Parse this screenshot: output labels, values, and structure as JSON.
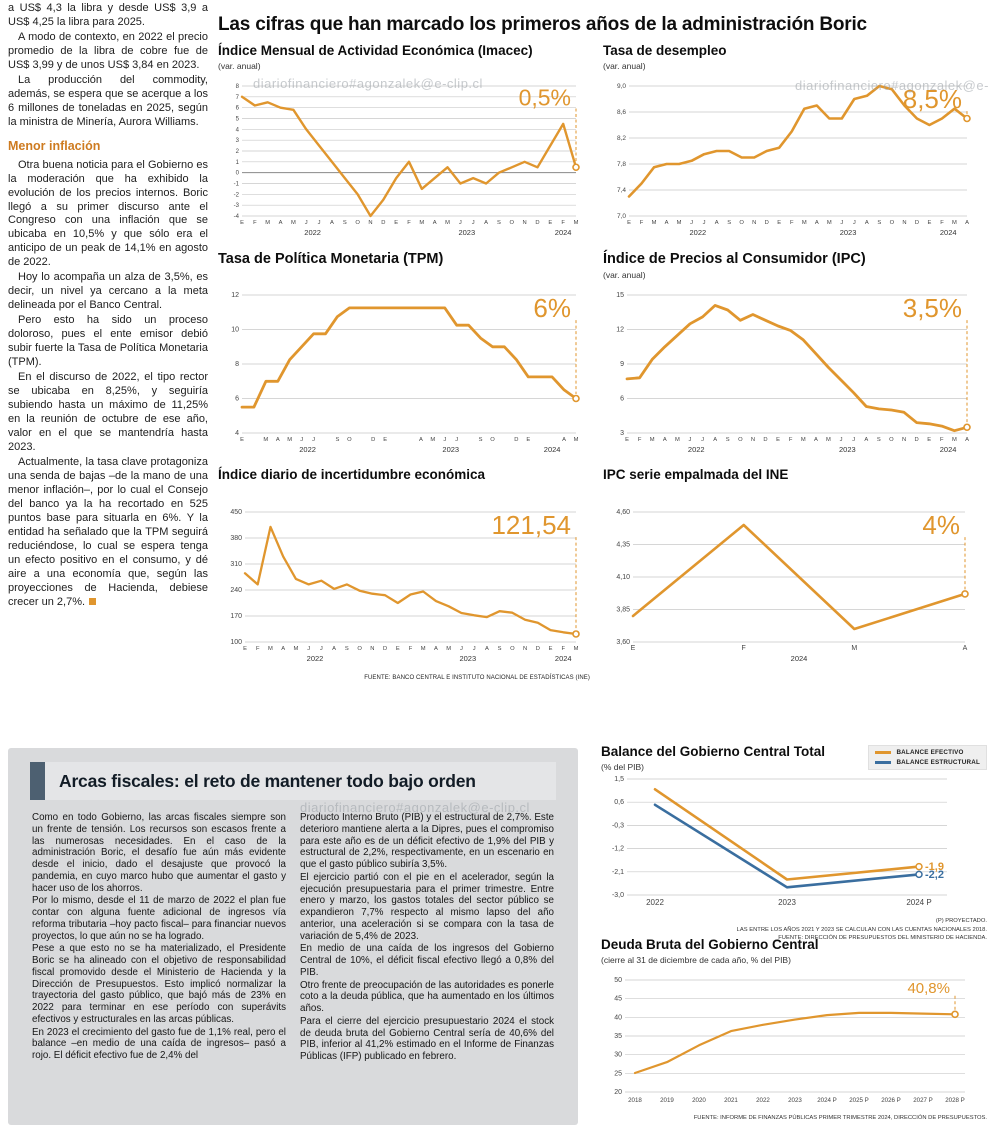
{
  "watermark": "diariofinanciero#agonzalek@e-clip.cl",
  "left_column": {
    "paras1": [
      "a US$ 4,3 la libra y desde US$ 3,9 a US$ 4,25 la libra para 2025.",
      "A modo de contexto, en 2022 el precio promedio de la libra de cobre fue de US$ 3,99 y de unos US$ 3,84 en 2023.",
      "La producción del commodity, además, se espera que se acerque a los 6 millones de toneladas en 2025, según la ministra de Minería, Aurora Williams."
    ],
    "subhead": "Menor inflación",
    "paras2": [
      "Otra buena noticia para el Gobierno es la moderación que ha exhibido la evolución de los precios internos. Boric llegó a su primer discurso ante el Congreso con una inflación que se ubicaba en 10,5% y que sólo era el anticipo de un peak de 14,1% en agosto de 2022.",
      "Hoy lo acompaña un alza de 3,5%, es decir, un nivel ya cercano a la meta delineada por el Banco Central.",
      "Pero esto ha sido un proceso doloroso, pues el ente emisor debió subir fuerte la Tasa de Política Monetaria (TPM).",
      "En el discurso de 2022, el tipo rector se ubicaba en 8,25%, y seguiría subiendo hasta un máximo de 11,25% en la reunión de octubre de ese año, valor en el que se mantendría hasta 2023.",
      "Actualmente, la tasa clave protagoniza una senda de bajas –de la mano de una menor inflación–, por lo cual el Consejo del banco ya la ha recortado en 525 puntos base para situarla en 6%. Y la entidad ha señalado que la TPM seguirá reduciéndose, lo cual se espera tenga un efecto positivo en el consumo, y dé aire a una economía que, según las proyecciones de Hacienda, debiese crecer un 2,7%."
    ]
  },
  "main": {
    "title": "Las cifras que han marcado los primeros años de la administración Boric",
    "source_note": "FUENTE: BANCO CENTRAL E INSTITUTO NACIONAL DE ESTADÍSTICAS (INE)"
  },
  "fiscal": {
    "heading": "Arcas fiscales: el reto de mantener todo bajo orden",
    "col1": [
      "Como en todo Gobierno, las arcas fiscales siempre son un frente de tensión. Los recursos son escasos frente a las numerosas necesidades. En el caso de la administración Boric, el desafío fue aún más evidente desde el inicio, dado el desajuste que provocó la pandemia, en cuyo marco hubo que aumentar el gasto y hacer uso de los ahorros.",
      "Por lo mismo, desde el 11 de marzo de 2022 el plan fue contar con alguna fuente adicional de ingresos vía reforma tributaria –hoy pacto fiscal– para financiar nuevos proyectos, lo que aún no se ha logrado.",
      "Pese a que esto no se ha materializado, el Presidente Boric se ha alineado con el objetivo de responsabilidad fiscal promovido desde el Ministerio de Hacienda y la Dirección de Presupuestos. Esto implicó normalizar la trayectoria del gasto público, que bajó más de 23% en 2022 para terminar en ese período con superávits efectivos y estructurales en las arcas públicas.",
      "En 2023 el crecimiento del gasto fue de 1,1% real, pero el balance –en medio de una caída de ingresos– pasó a rojo. El déficit efectivo fue de 2,4% del"
    ],
    "col2": [
      "Producto Interno Bruto (PIB) y el estructural de 2,7%. Este deterioro mantiene alerta a la Dipres, pues el compromiso para este año es de un déficit efectivo de 1,9% del PIB y estructural de 2,2%, respectivamente, en un escenario en que el gasto público subiría 3,5%.",
      "El ejercicio partió con el pie en el acelerador, según la ejecución presupuestaria para el primer trimestre. Entre enero y marzo, los gastos totales del sector público se expandieron 7,7% respecto al mismo lapso del año anterior, una aceleración si se compara con la tasa de variación de 5,4% de 2023.",
      "En medio de una caída de los ingresos del Gobierno Central de 10%, el déficit fiscal efectivo llegó a 0,8% del PIB.",
      "Otro frente de preocupación de las autoridades es ponerle coto a la deuda pública, que ha aumentado en los últimos años.",
      "Para el cierre del ejercicio presupuestario 2024 el stock de deuda bruta del Gobierno Central sería de 40,6% del PIB, inferior al 41,2% estimado en el Informe de Finanzas Públicas (IFP) publicado en febrero."
    ]
  },
  "chart_data": [
    {
      "id": "imacec",
      "type": "line",
      "title": "Índice Mensual de Actividad Económica (Imacec)",
      "subtitle": "(var. anual)",
      "callout": "0,5%",
      "ylim": [
        -4,
        8
      ],
      "yticks": [
        8,
        7,
        6,
        5,
        4,
        3,
        2,
        1,
        0,
        -1,
        -2,
        -3,
        -4
      ],
      "ytick_labels": [
        "8",
        "7",
        "6",
        "5",
        "4",
        "3",
        "2",
        "1",
        "0",
        "-1",
        "-2",
        "-3",
        "-4"
      ],
      "x": [
        "E",
        "F",
        "M",
        "A",
        "M",
        "J",
        "J",
        "A",
        "S",
        "O",
        "N",
        "D",
        "E",
        "F",
        "M",
        "A",
        "M",
        "J",
        "J",
        "A",
        "S",
        "O",
        "N",
        "D",
        "E",
        "F",
        "M"
      ],
      "year_labels": [
        {
          "label": "2022",
          "start": 0,
          "end": 11
        },
        {
          "label": "2023",
          "start": 12,
          "end": 23
        },
        {
          "label": "2024",
          "start": 24,
          "end": 26
        }
      ],
      "series": [
        {
          "name": "Imacec var. anual",
          "color": "#E0962E",
          "values": [
            7,
            6.2,
            6.5,
            6,
            5.8,
            4,
            2.5,
            1,
            -0.5,
            -2,
            -4,
            -2.5,
            -0.5,
            1,
            -1.5,
            -0.5,
            0.5,
            -1,
            -0.5,
            -1,
            0,
            0.5,
            1,
            0.5,
            2.5,
            4.5,
            0.5
          ]
        }
      ]
    },
    {
      "id": "desempleo",
      "type": "line",
      "title": "Tasa de desempleo",
      "subtitle": "(var. anual)",
      "callout": "8,5%",
      "ylim": [
        7.0,
        9.0
      ],
      "yticks": [
        9.0,
        8.6,
        8.2,
        7.8,
        7.4,
        7.0
      ],
      "ytick_labels": [
        "9,0",
        "8,6",
        "8,2",
        "7,8",
        "7,4",
        "7,0"
      ],
      "x": [
        "E",
        "F",
        "M",
        "A",
        "M",
        "J",
        "J",
        "A",
        "S",
        "O",
        "N",
        "D",
        "E",
        "F",
        "M",
        "A",
        "M",
        "J",
        "J",
        "A",
        "S",
        "O",
        "N",
        "D",
        "E",
        "F",
        "M",
        "A"
      ],
      "year_labels": [
        {
          "label": "2022",
          "start": 0,
          "end": 11
        },
        {
          "label": "2023",
          "start": 12,
          "end": 23
        },
        {
          "label": "2024",
          "start": 24,
          "end": 27
        }
      ],
      "series": [
        {
          "name": "Tasa de desempleo",
          "color": "#E0962E",
          "values": [
            7.3,
            7.5,
            7.75,
            7.8,
            7.8,
            7.85,
            7.95,
            8.0,
            8.0,
            7.9,
            7.9,
            8.0,
            8.05,
            8.3,
            8.65,
            8.7,
            8.5,
            8.5,
            8.8,
            8.85,
            9.0,
            8.95,
            8.7,
            8.5,
            8.4,
            8.5,
            8.65,
            8.5
          ]
        }
      ]
    },
    {
      "id": "tpm",
      "type": "line",
      "title": "Tasa de Política Monetaria (TPM)",
      "subtitle": "",
      "callout": "6%",
      "ylim": [
        4,
        12
      ],
      "yticks": [
        12,
        10,
        8,
        6,
        4
      ],
      "ytick_labels": [
        "12",
        "10",
        "8",
        "6",
        "4"
      ],
      "x": [
        "E",
        "",
        "M",
        "A",
        "M",
        "J",
        "J",
        "",
        "S",
        "O",
        "",
        "D",
        "E",
        "",
        "",
        "A",
        "M",
        "J",
        "J",
        "",
        "S",
        "O",
        "",
        "D",
        "E",
        "",
        "",
        "A",
        "M"
      ],
      "year_labels": [
        {
          "label": "2022",
          "start": 0,
          "end": 11
        },
        {
          "label": "2023",
          "start": 12,
          "end": 23
        },
        {
          "label": "2024",
          "start": 24,
          "end": 28
        }
      ],
      "series": [
        {
          "name": "TPM",
          "color": "#E0962E",
          "values": [
            5.5,
            5.5,
            7,
            7,
            8.25,
            9,
            9.75,
            9.75,
            10.75,
            11.25,
            11.25,
            11.25,
            11.25,
            11.25,
            11.25,
            11.25,
            11.25,
            11.25,
            10.25,
            10.25,
            9.5,
            9,
            9,
            8.25,
            7.25,
            7.25,
            7.25,
            6.5,
            6
          ]
        }
      ]
    },
    {
      "id": "ipc",
      "type": "line",
      "title": "Índice de Precios al Consumidor (IPC)",
      "subtitle": "(var. anual)",
      "callout": "3,5%",
      "ylim": [
        3,
        15
      ],
      "yticks": [
        15,
        12,
        9,
        6,
        3
      ],
      "ytick_labels": [
        "15",
        "12",
        "9",
        "6",
        "3"
      ],
      "x": [
        "E",
        "F",
        "M",
        "A",
        "M",
        "J",
        "J",
        "A",
        "S",
        "O",
        "N",
        "D",
        "E",
        "F",
        "M",
        "A",
        "M",
        "J",
        "J",
        "A",
        "S",
        "O",
        "N",
        "D",
        "E",
        "F",
        "M",
        "A"
      ],
      "year_labels": [
        {
          "label": "2022",
          "start": 0,
          "end": 11
        },
        {
          "label": "2023",
          "start": 12,
          "end": 23
        },
        {
          "label": "2024",
          "start": 24,
          "end": 27
        }
      ],
      "series": [
        {
          "name": "IPC var. anual",
          "color": "#E0962E",
          "values": [
            7.7,
            7.8,
            9.4,
            10.5,
            11.5,
            12.5,
            13.1,
            14.1,
            13.7,
            12.8,
            13.3,
            12.8,
            12.3,
            11.9,
            11.1,
            9.9,
            8.7,
            7.6,
            6.5,
            5.3,
            5.1,
            5.0,
            4.8,
            3.9,
            3.8,
            3.6,
            3.2,
            3.5
          ]
        }
      ]
    },
    {
      "id": "incertidumbre",
      "type": "line",
      "title": "Índice diario de incertidumbre económica",
      "subtitle": "",
      "callout": "121,54",
      "ylim": [
        100,
        450
      ],
      "yticks": [
        450,
        380,
        310,
        240,
        170,
        100
      ],
      "ytick_labels": [
        "450",
        "380",
        "310",
        "240",
        "170",
        "100"
      ],
      "x": [
        "E",
        "F",
        "M",
        "A",
        "M",
        "J",
        "J",
        "A",
        "S",
        "O",
        "N",
        "D",
        "E",
        "F",
        "M",
        "A",
        "M",
        "J",
        "J",
        "A",
        "S",
        "O",
        "N",
        "D",
        "E",
        "F",
        "M"
      ],
      "year_labels": [
        {
          "label": "2022",
          "start": 0,
          "end": 11
        },
        {
          "label": "2023",
          "start": 12,
          "end": 23
        },
        {
          "label": "2024",
          "start": 24,
          "end": 26
        }
      ],
      "series": [
        {
          "name": "Incertidumbre económica",
          "color": "#E0962E",
          "values": [
            285,
            255,
            410,
            330,
            270,
            255,
            265,
            243,
            255,
            238,
            230,
            226,
            205,
            228,
            236,
            210,
            196,
            178,
            172,
            167,
            183,
            179,
            160,
            152,
            132,
            126,
            121.54
          ]
        }
      ]
    },
    {
      "id": "ipc-ine",
      "type": "line",
      "title": "IPC serie empalmada del INE",
      "subtitle": "",
      "callout": "4%",
      "ylim": [
        3.6,
        4.6
      ],
      "yticks": [
        4.6,
        4.35,
        4.1,
        3.85,
        3.6
      ],
      "ytick_labels": [
        "4,60",
        "4,35",
        "4,10",
        "3,85",
        "3,60"
      ],
      "x": [
        "E",
        "F",
        "M",
        "A"
      ],
      "year_labels": [
        {
          "label": "2024",
          "start": 0,
          "end": 3
        }
      ],
      "series": [
        {
          "name": "IPC serie empalmada",
          "color": "#E0962E",
          "values": [
            3.8,
            4.5,
            3.7,
            3.97
          ]
        }
      ]
    },
    {
      "id": "balance",
      "type": "line",
      "title": "Balance del Gobierno Central Total",
      "subtitle": "(% del PIB)",
      "ylim": [
        -3.0,
        1.5
      ],
      "yticks": [
        1.5,
        0.6,
        -0.3,
        -1.2,
        -2.1,
        -3.0
      ],
      "ytick_labels": [
        "1,5",
        "0,6",
        "-0,3",
        "-1,2",
        "-2,1",
        "-3,0"
      ],
      "x": [
        "2022",
        "2023",
        "2024 P"
      ],
      "series": [
        {
          "name": "BALANCE EFECTIVO",
          "color": "#E0962E",
          "values": [
            1.1,
            -2.4,
            -1.9
          ],
          "end_label": "-1,9"
        },
        {
          "name": "BALANCE ESTRUCTURAL",
          "color": "#3A6E9F",
          "values": [
            0.5,
            -2.7,
            -2.2
          ],
          "end_label": "-2,2"
        }
      ],
      "footnotes": [
        "(P) PROYECTADO.",
        "LAS ENTRE LOS AÑOS 2021 Y 2023 SE CALCULAN CON LAS CUENTAS NACIONALES 2018.",
        "FUENTE: DIRECCIÓN DE PRESUPUESTOS DEL MINISTERIO DE HACIENDA."
      ]
    },
    {
      "id": "deuda",
      "type": "line",
      "title": "Deuda Bruta del Gobierno Central",
      "subtitle": "(cierre al 31 de diciembre de cada año, % del PIB)",
      "callout": "40,8%",
      "ylim": [
        20,
        50
      ],
      "yticks": [
        50,
        45,
        40,
        35,
        30,
        25,
        20
      ],
      "ytick_labels": [
        "50",
        "45",
        "40",
        "35",
        "30",
        "25",
        "20"
      ],
      "x": [
        "2018",
        "2019",
        "2020",
        "2021",
        "2022",
        "2023",
        "2024 P",
        "2025 P",
        "2026 P",
        "2027 P",
        "2028 P"
      ],
      "series": [
        {
          "name": "Deuda bruta",
          "color": "#E0962E",
          "values": [
            25.1,
            28.0,
            32.5,
            36.3,
            38.0,
            39.4,
            40.6,
            41.2,
            41.2,
            41.0,
            40.8
          ]
        }
      ],
      "footnotes": [
        "FUENTE: INFORME DE FINANZAS PÚBLICAS PRIMER TRIMESTRE 2024, DIRECCIÓN DE PRESUPUESTOS."
      ]
    }
  ]
}
